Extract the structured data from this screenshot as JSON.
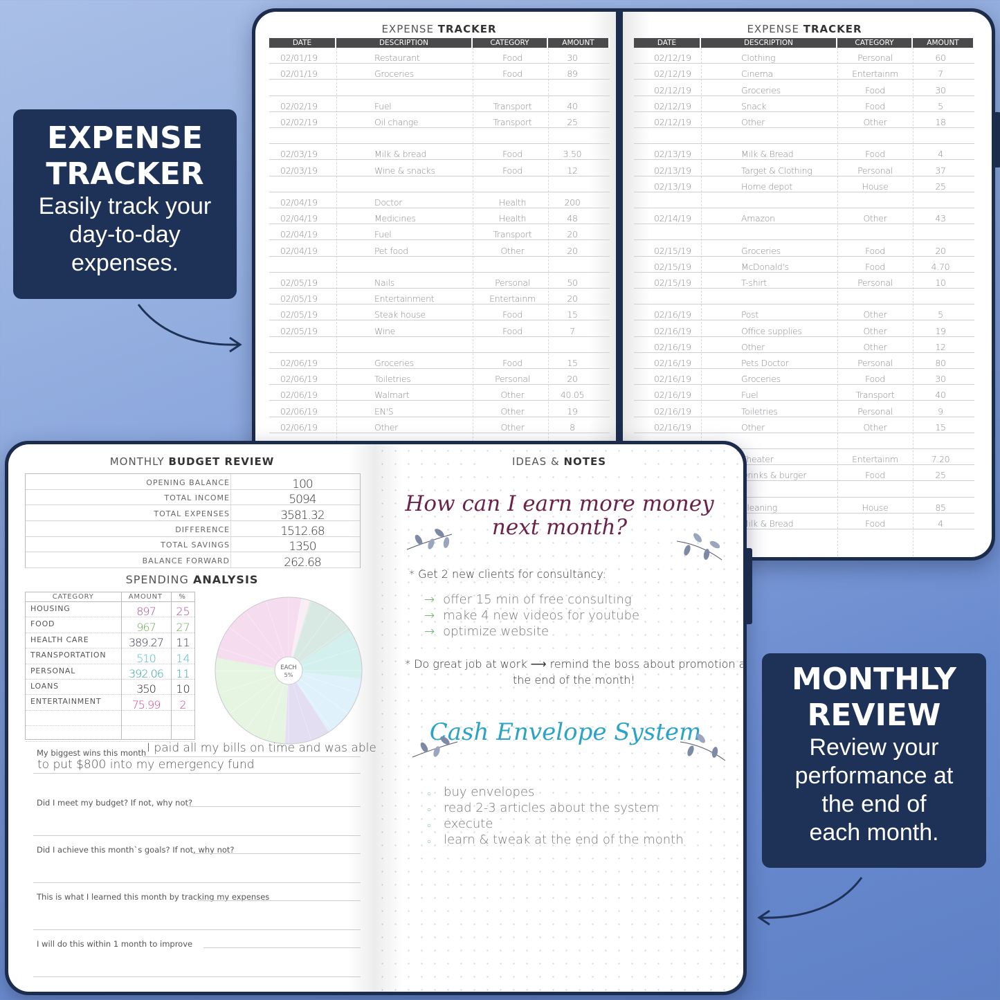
{
  "callouts": {
    "expense": {
      "heading1": "EXPENSE",
      "heading2": "TRACKER",
      "sub": [
        "Easily track your",
        "day-to-day",
        "expenses."
      ]
    },
    "monthly": {
      "heading1": "MONTHLY",
      "heading2": "REVIEW",
      "sub": [
        "Review your",
        "performance at",
        "the end of",
        "each month."
      ]
    }
  },
  "tracker": {
    "title_light": "EXPENSE",
    "title_bold": "TRACKER",
    "columns": [
      "DATE",
      "DESCRIPTION",
      "CATEGORY",
      "AMOUNT"
    ],
    "left_rows": [
      [
        "02/01/19",
        "Restaurant",
        "Food",
        "30"
      ],
      [
        "02/01/19",
        "Groceries",
        "Food",
        "89"
      ],
      [],
      [
        "02/02/19",
        "Fuel",
        "Transport",
        "40"
      ],
      [
        "02/02/19",
        "Oil change",
        "Transport",
        "25"
      ],
      [],
      [
        "02/03/19",
        "Milk & bread",
        "Food",
        "3.50"
      ],
      [
        "02/03/19",
        "Wine & snacks",
        "Food",
        "12"
      ],
      [],
      [
        "02/04/19",
        "Doctor",
        "Health",
        "200"
      ],
      [
        "02/04/19",
        "Medicines",
        "Health",
        "48"
      ],
      [
        "02/04/19",
        "Fuel",
        "Transport",
        "20"
      ],
      [
        "02/04/19",
        "Pet food",
        "Other",
        "20"
      ],
      [],
      [
        "02/05/19",
        "Nails",
        "Personal",
        "50"
      ],
      [
        "02/05/19",
        "Entertainment",
        "Entertainm",
        "20"
      ],
      [
        "02/05/19",
        "Steak house",
        "Food",
        "15"
      ],
      [
        "02/05/19",
        "Wine",
        "Food",
        "7"
      ],
      [],
      [
        "02/06/19",
        "Groceries",
        "Food",
        "15"
      ],
      [
        "02/06/19",
        "Toiletries",
        "Personal",
        "20"
      ],
      [
        "02/06/19",
        "Walmart",
        "Other",
        "40.05"
      ],
      [
        "02/06/19",
        "EN'S",
        "Other",
        "19"
      ],
      [
        "02/06/19",
        "Other",
        "Other",
        "8"
      ]
    ],
    "right_rows": [
      [
        "02/12/19",
        "Clothing",
        "Personal",
        "60"
      ],
      [
        "02/12/19",
        "Cinema",
        "Entertainm",
        "7"
      ],
      [
        "02/12/19",
        "Groceries",
        "Food",
        "30"
      ],
      [
        "02/12/19",
        "Snack",
        "Food",
        "5"
      ],
      [
        "02/12/19",
        "Other",
        "Other",
        "18"
      ],
      [],
      [
        "02/13/19",
        "Milk & Bread",
        "Food",
        "4"
      ],
      [
        "02/13/19",
        "Target & Clothing",
        "Personal",
        "37"
      ],
      [
        "02/13/19",
        "Home depot",
        "House",
        "25"
      ],
      [],
      [
        "02/14/19",
        "Amazon",
        "Other",
        "43"
      ],
      [],
      [
        "02/15/19",
        "Groceries",
        "Food",
        "20"
      ],
      [
        "02/15/19",
        "McDonald's",
        "Food",
        "4.70"
      ],
      [
        "02/15/19",
        "T-shirt",
        "Personal",
        "10"
      ],
      [],
      [
        "02/16/19",
        "Post",
        "Other",
        "5"
      ],
      [
        "02/16/19",
        "Office supplies",
        "Other",
        "19"
      ],
      [
        "02/16/19",
        "Other",
        "Other",
        "12"
      ],
      [
        "02/16/19",
        "Pets Doctor",
        "Personal",
        "80"
      ],
      [
        "02/16/19",
        "Groceries",
        "Food",
        "30"
      ],
      [
        "02/16/19",
        "Fuel",
        "Transport",
        "40"
      ],
      [
        "02/16/19",
        "Toiletries",
        "Personal",
        "9"
      ],
      [
        "02/16/19",
        "Other",
        "Other",
        "15"
      ],
      [],
      [
        "",
        "Theater",
        "Entertainm",
        "7.20"
      ],
      [
        "",
        "Drinks & burger",
        "Food",
        "25"
      ],
      [],
      [
        "",
        "Cleaning",
        "House",
        "85"
      ],
      [
        "",
        "Milk & Bread",
        "Food",
        "4"
      ]
    ]
  },
  "budget": {
    "title_light": "MONTHLY",
    "title_bold": "BUDGET REVIEW",
    "rows": [
      [
        "OPENING BALANCE",
        "100"
      ],
      [
        "TOTAL INCOME",
        "5094"
      ],
      [
        "TOTAL EXPENSES",
        "3581.32"
      ],
      [
        "DIFFERENCE",
        "1512.68"
      ],
      [
        "TOTAL SAVINGS",
        "1350"
      ],
      [
        "BALANCE FORWARD",
        "262.68"
      ]
    ]
  },
  "spending": {
    "title_light": "SPENDING",
    "title_bold": "ANALYSIS",
    "columns": [
      "CATEGORY",
      "AMOUNT",
      "%"
    ],
    "rows": [
      {
        "category": "HOUSING",
        "amount": "897",
        "pct": "25",
        "color": "#b04a95"
      },
      {
        "category": "FOOD",
        "amount": "967",
        "pct": "27",
        "color": "#6aa84f"
      },
      {
        "category": "HEALTH CARE",
        "amount": "389.27",
        "pct": "11",
        "color": "#2f3550"
      },
      {
        "category": "TRANSPORTATION",
        "amount": "510",
        "pct": "14",
        "color": "#4fb8d8"
      },
      {
        "category": "PERSONAL",
        "amount": "392.06",
        "pct": "11",
        "color": "#2ba59a"
      },
      {
        "category": "LOANS",
        "amount": "350",
        "pct": "10",
        "color": "#222222"
      },
      {
        "category": "ENTERTAINMENT",
        "amount": "75.99",
        "pct": "2",
        "color": "#d0428a"
      }
    ],
    "pie_center_label": [
      "EACH",
      "5%"
    ]
  },
  "chart_data": {
    "type": "pie",
    "categories": [
      "HOUSING",
      "ENTERTAINMENT",
      "HEALTH CARE",
      "PERSONAL",
      "TRANSPORTATION",
      "LOANS",
      "FOOD"
    ],
    "values": [
      25,
      2,
      11,
      11,
      14,
      10,
      27
    ],
    "colors": [
      "#f5dcef",
      "#f9eef5",
      "#d8e8e2",
      "#d3efee",
      "#dff2fb",
      "#e4def2",
      "#e6f5e2"
    ],
    "segment_step_pct": 5
  },
  "reflection": {
    "items": [
      {
        "q": "My biggest wins this month",
        "a1": "I paid all my bills on time and was able",
        "a2": "to put $800 into my emergency fund"
      },
      {
        "q": "Did I meet my budget? If not, why not?"
      },
      {
        "q": "Did I achieve this month`s goals? If not, why not?"
      },
      {
        "q": "This is what I learned this month by tracking my expenses"
      },
      {
        "q": "I will do this within 1 month to improve"
      }
    ]
  },
  "notes": {
    "title_light": "IDEAS &",
    "title_bold": "NOTES",
    "heading1": [
      "How can I earn more money",
      "next month?"
    ],
    "goal1": "* Get 2 new clients for consultancy:",
    "goal1_steps": [
      "offer 15 min of free consulting",
      "make 4 new videos for youtube",
      "optimize website"
    ],
    "goal2a": "* Do great job at work",
    "goal2b": "remind the boss about promotion at",
    "goal2c": "the end of the month!",
    "heading2": "Cash Envelope System",
    "list": [
      "buy envelopes",
      "read 2-3 articles about the system",
      "execute",
      "learn & tweak at the end of the month"
    ],
    "colors": {
      "heading1": "#6b2249",
      "heading2": "#2aa3c9",
      "arrows": "#5fae6a"
    }
  }
}
